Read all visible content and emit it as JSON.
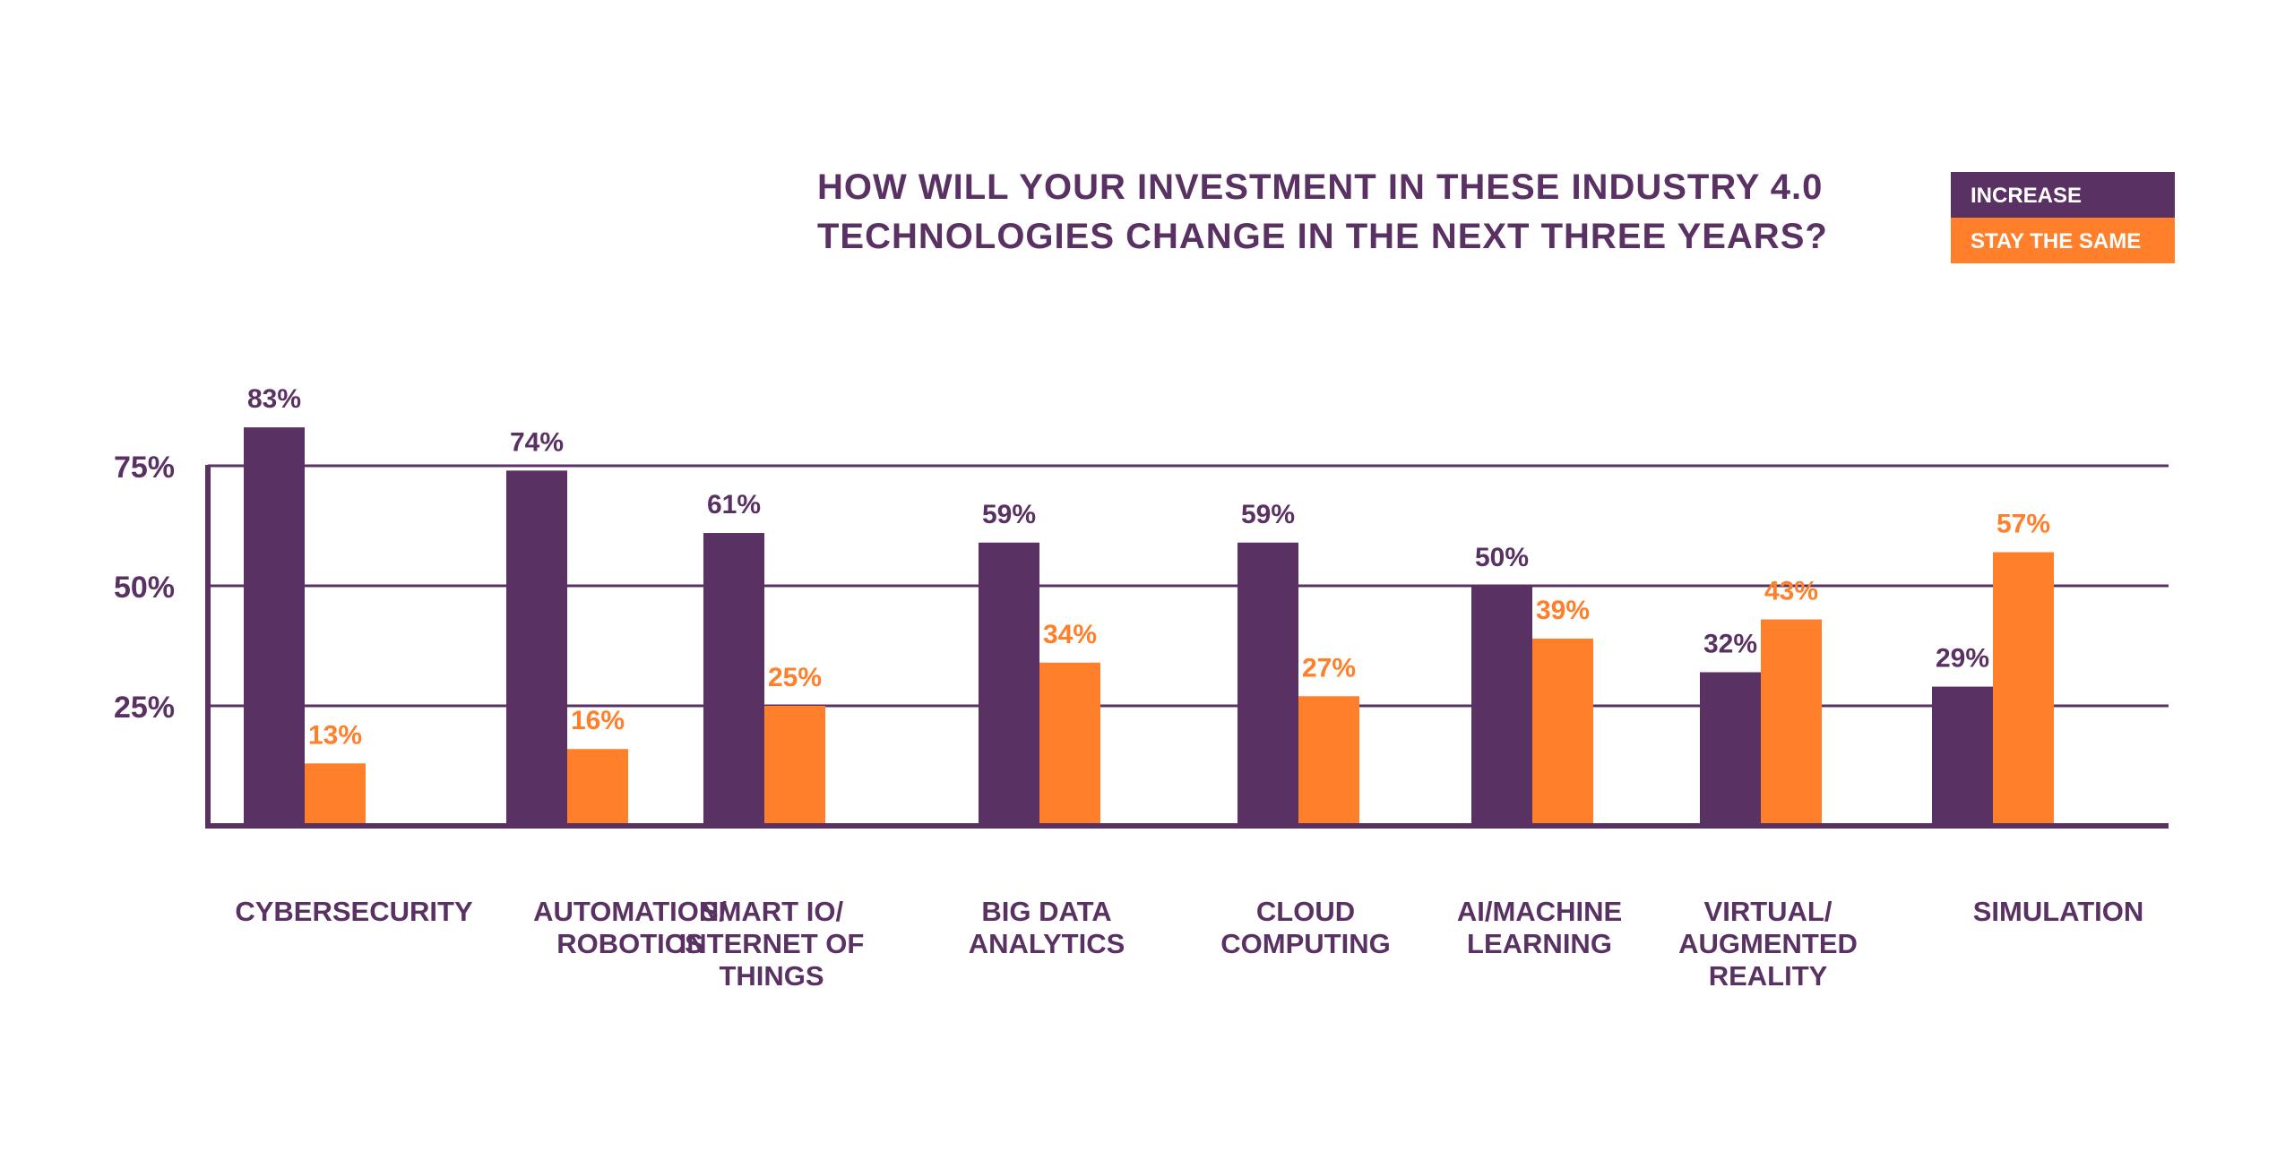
{
  "chart_data": {
    "type": "bar",
    "title_lines": [
      "HOW WILL YOUR INVESTMENT IN THESE INDUSTRY 4.0",
      "TECHNOLOGIES CHANGE IN THE NEXT THREE YEARS?"
    ],
    "legend_position": "top-right",
    "categories": [
      [
        "CYBERSECURITY"
      ],
      [
        "AUTOMATION/",
        "ROBOTICS"
      ],
      [
        "SMART IO/",
        "INTERNET OF",
        "THINGS"
      ],
      [
        "BIG DATA",
        "ANALYTICS"
      ],
      [
        "CLOUD",
        "COMPUTING"
      ],
      [
        "AI/MACHINE",
        "LEARNING"
      ],
      [
        "VIRTUAL/",
        "AUGMENTED",
        "REALITY"
      ],
      [
        "SIMULATION"
      ]
    ],
    "series": [
      {
        "name": "INCREASE",
        "color": "#5a3163",
        "values": [
          83,
          74,
          61,
          59,
          59,
          50,
          32,
          29
        ],
        "labels": [
          "83%",
          "74%",
          "61%",
          "59%",
          "59%",
          "50%",
          "32%",
          "29%"
        ]
      },
      {
        "name": "STAY THE SAME",
        "color": "#ff7f2a",
        "values": [
          13,
          16,
          25,
          34,
          27,
          39,
          43,
          57
        ],
        "labels": [
          "13%",
          "16%",
          "25%",
          "34%",
          "27%",
          "39%",
          "43%",
          "57%"
        ]
      }
    ],
    "yticks": [
      25,
      50,
      75
    ],
    "ytick_labels": [
      "25%",
      "50%",
      "75%"
    ],
    "ylim": [
      0,
      75
    ],
    "grid": true,
    "axis_color": "#5a3163",
    "text_color": "#5a3163"
  }
}
